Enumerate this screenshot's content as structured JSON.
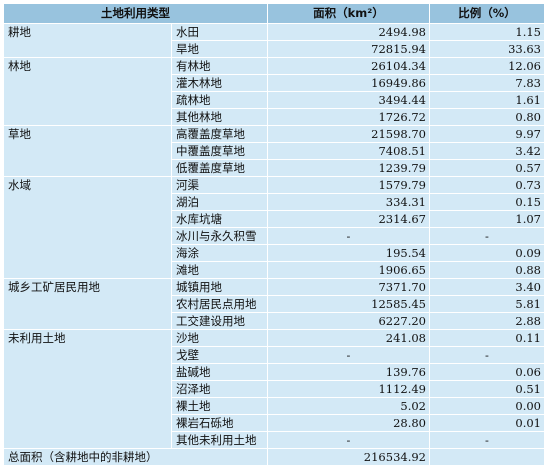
{
  "header": {
    "type": "土地利用类型",
    "area": "面积（km²）",
    "ratio": "比例（%）"
  },
  "groups": [
    {
      "name": "耕地",
      "rows": [
        {
          "sub": "水田",
          "area": "2494.98",
          "ratio": "1.15"
        },
        {
          "sub": "旱地",
          "area": "72815.94",
          "ratio": "33.63"
        }
      ]
    },
    {
      "name": "林地",
      "rows": [
        {
          "sub": "有林地",
          "area": "26104.34",
          "ratio": "12.06"
        },
        {
          "sub": "灌木林地",
          "area": "16949.86",
          "ratio": "7.83"
        },
        {
          "sub": "疏林地",
          "area": "3494.44",
          "ratio": "1.61"
        },
        {
          "sub": "其他林地",
          "area": "1726.72",
          "ratio": "0.80"
        }
      ]
    },
    {
      "name": "草地",
      "rows": [
        {
          "sub": "高覆盖度草地",
          "area": "21598.70",
          "ratio": "9.97"
        },
        {
          "sub": "中覆盖度草地",
          "area": "7408.51",
          "ratio": "3.42"
        },
        {
          "sub": "低覆盖度草地",
          "area": "1239.79",
          "ratio": "0.57"
        }
      ]
    },
    {
      "name": "水域",
      "rows": [
        {
          "sub": "河渠",
          "area": "1579.79",
          "ratio": "0.73"
        },
        {
          "sub": "湖泊",
          "area": "334.31",
          "ratio": "0.15"
        },
        {
          "sub": "水库坑塘",
          "area": "2314.67",
          "ratio": "1.07"
        },
        {
          "sub": "冰川与永久积雪",
          "area": "-",
          "ratio": "-"
        },
        {
          "sub": "海涂",
          "area": "195.54",
          "ratio": "0.09"
        },
        {
          "sub": "滩地",
          "area": "1906.65",
          "ratio": "0.88"
        }
      ]
    },
    {
      "name": "城乡工矿居民用地",
      "rows": [
        {
          "sub": "城镇用地",
          "area": "7371.70",
          "ratio": "3.40"
        },
        {
          "sub": "农村居民点用地",
          "area": "12585.45",
          "ratio": "5.81"
        },
        {
          "sub": "工交建设用地",
          "area": "6227.20",
          "ratio": "2.88"
        }
      ]
    },
    {
      "name": "未利用土地",
      "rows": [
        {
          "sub": "沙地",
          "area": "241.08",
          "ratio": "0.11"
        },
        {
          "sub": "戈壁",
          "area": "-",
          "ratio": "-"
        },
        {
          "sub": "盐碱地",
          "area": "139.76",
          "ratio": "0.06"
        },
        {
          "sub": "沼泽地",
          "area": "1112.49",
          "ratio": "0.51"
        },
        {
          "sub": "裸土地",
          "area": "5.02",
          "ratio": "0.00"
        },
        {
          "sub": "裸岩石砾地",
          "area": "28.80",
          "ratio": "0.01"
        },
        {
          "sub": "其他未利用土地",
          "area": "-",
          "ratio": "-"
        }
      ]
    }
  ],
  "total": {
    "label": "总面积（含耕地中的非耕地）",
    "area": "216534.92",
    "ratio": ""
  }
}
